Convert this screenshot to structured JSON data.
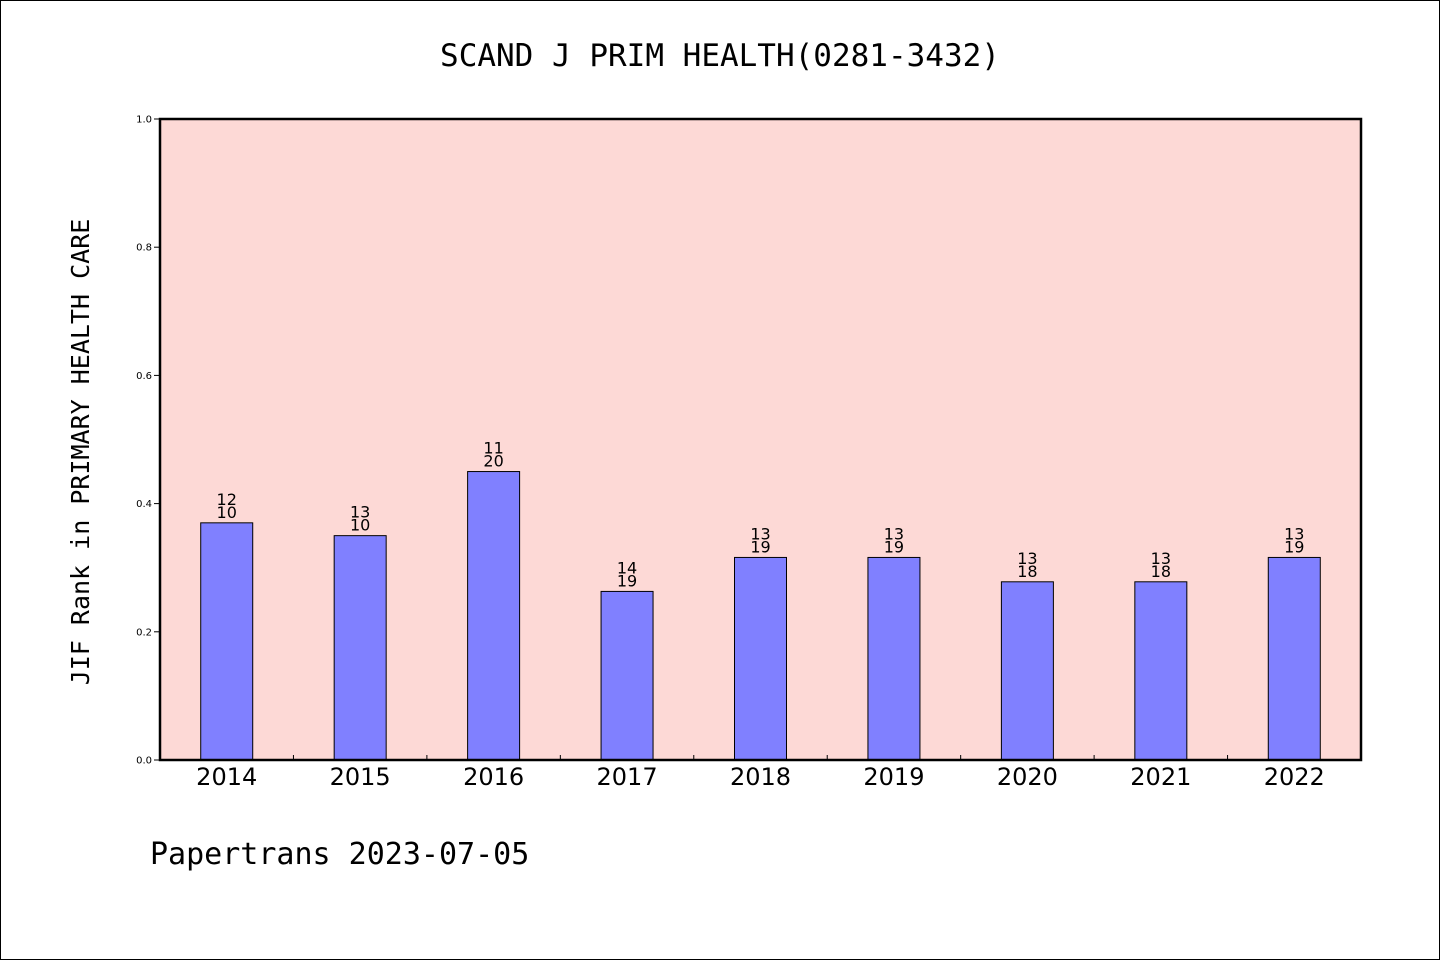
{
  "chart_data": {
    "type": "bar",
    "title": "SCAND J PRIM HEALTH(0281-3432)",
    "ylabel": "JIF Rank in PRIMARY HEALTH CARE",
    "xlabel": "",
    "ylim": [
      0,
      1.0
    ],
    "yticks": [
      0.0,
      0.2,
      0.4,
      0.6,
      0.8,
      1.0
    ],
    "ytick_labels": [
      "0.0",
      "0.2",
      "0.4",
      "0.6",
      "0.8",
      "1.0"
    ],
    "categories": [
      "2014",
      "2015",
      "2016",
      "2017",
      "2018",
      "2019",
      "2020",
      "2021",
      "2022"
    ],
    "values": [
      0.37,
      0.35,
      0.45,
      0.263,
      0.316,
      0.316,
      0.278,
      0.278,
      0.316
    ],
    "label_top": [
      "12",
      "13",
      "11",
      "14",
      "13",
      "13",
      "13",
      "13",
      "13"
    ],
    "label_bottom": [
      "10",
      "10",
      "20",
      "19",
      "19",
      "19",
      "18",
      "18",
      "19"
    ],
    "grid": false,
    "colors": {
      "plot_background": "#fdd9d6",
      "bar_fill": "#8080ff",
      "bar_stroke": "#000000"
    }
  },
  "footer": {
    "text": "Papertrans 2023-07-05"
  }
}
